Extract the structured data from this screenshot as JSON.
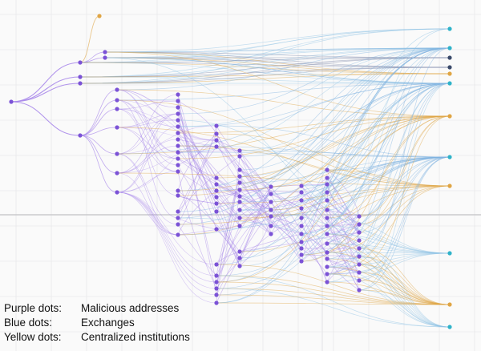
{
  "legend": {
    "purple_label": "Purple dots:",
    "purple_text": "Malicious addresses",
    "blue_label": "Blue dots:",
    "blue_text": "Exchanges",
    "yellow_label": "Yellow dots:",
    "yellow_text": "Centralized institutions"
  },
  "colors": {
    "background": "#fafafa",
    "grid": "#e3e3e6",
    "axis": "#c9c9cc",
    "malicious": "#7b52d6",
    "malicious_edge": "#a888ea",
    "exchange": "#2fb3c9",
    "exchange_dark": "#3a4a6a",
    "institution": "#e0a544"
  },
  "node_types": [
    "malicious-address",
    "exchange",
    "centralized-institution"
  ]
}
